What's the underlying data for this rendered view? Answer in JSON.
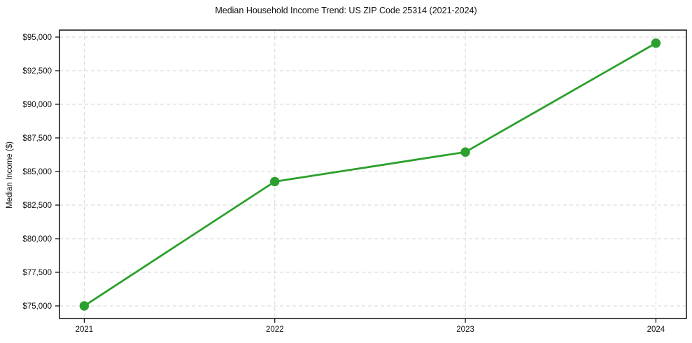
{
  "chart_data": {
    "type": "line",
    "title": "Median Household Income Trend: US ZIP Code 25314 (2021-2024)",
    "xlabel": "",
    "ylabel": "Median Income ($)",
    "x": [
      2021,
      2022,
      2023,
      2024
    ],
    "x_tick_labels": [
      "2021",
      "2022",
      "2023",
      "2024"
    ],
    "series": [
      {
        "name": "Median Household Income",
        "values": [
          75000,
          84250,
          86450,
          94550
        ]
      }
    ],
    "y_ticks": [
      75000,
      77500,
      80000,
      82500,
      85000,
      87500,
      90000,
      92500,
      95000
    ],
    "y_tick_labels": [
      "$75,000",
      "$77,500",
      "$80,000",
      "$82,500",
      "$85,000",
      "$87,500",
      "$90,000",
      "$92,500",
      "$95,000"
    ],
    "xlim": [
      2020.87,
      2024.16
    ],
    "ylim": [
      74063,
      95521
    ],
    "grid": true,
    "grid_style": "dashed",
    "legend": "none",
    "colors": {
      "line": "#2ca02c",
      "marker": "#2ca02c",
      "grid": "#d5d5d5",
      "spine": "#000000",
      "text": "#111111",
      "background": "#ffffff"
    },
    "marker": "circle",
    "marker_radius": 6.7,
    "line_width": 2.8
  }
}
